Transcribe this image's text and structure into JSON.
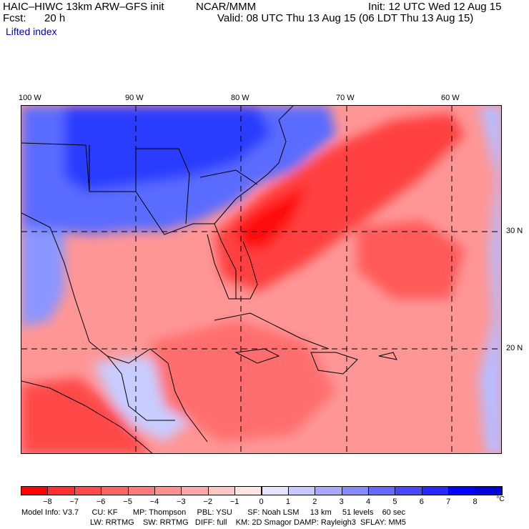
{
  "header": {
    "model": "HAIC–HIWC 13km ARW–GFS init",
    "org": "NCAR/MMM",
    "init": "Init: 12 UTC Wed 12 Aug 15",
    "fcst_label": "Fcst:",
    "fcst_value": "20 h",
    "valid": "Valid: 08 UTC Thu 13 Aug 15 (06 LDT Thu 13 Aug 15)",
    "field": "Lifted index"
  },
  "axes": {
    "lon_labels": [
      "100 W",
      "90 W",
      "80 W",
      "70 W",
      "60 W"
    ],
    "lat_labels": [
      "30 N",
      "20 N"
    ]
  },
  "colorbar": {
    "ticks": [
      "−8",
      "−7",
      "−6",
      "−5",
      "−4",
      "−3",
      "−2",
      "−1",
      "0",
      "1",
      "2",
      "3",
      "4",
      "5",
      "6",
      "7",
      "8"
    ],
    "unit": "°C",
    "colors": [
      "#ff0000",
      "#ff3030",
      "#ff4a4a",
      "#ff6464",
      "#ff7a7a",
      "#ff9090",
      "#ffa8a8",
      "#ffc4c4",
      "#ffe4e4",
      "#e4e4ff",
      "#c8c8ff",
      "#a8a8ff",
      "#8888ff",
      "#6868ff",
      "#4848ff",
      "#2828ff",
      "#0000ff",
      "#0000d8"
    ]
  },
  "footer": {
    "line1": "Model Info: V3.7      CU: KF       MP: Thompson     PBL: YSU       SF: Noah LSM     13 km     51 levels    60 sec",
    "line2": "LW: RRTMG    SW: RRTMG   DIFF: full    KM: 2D Smagor DAMP: Rayleigh3  SFLAY: MM5"
  }
}
